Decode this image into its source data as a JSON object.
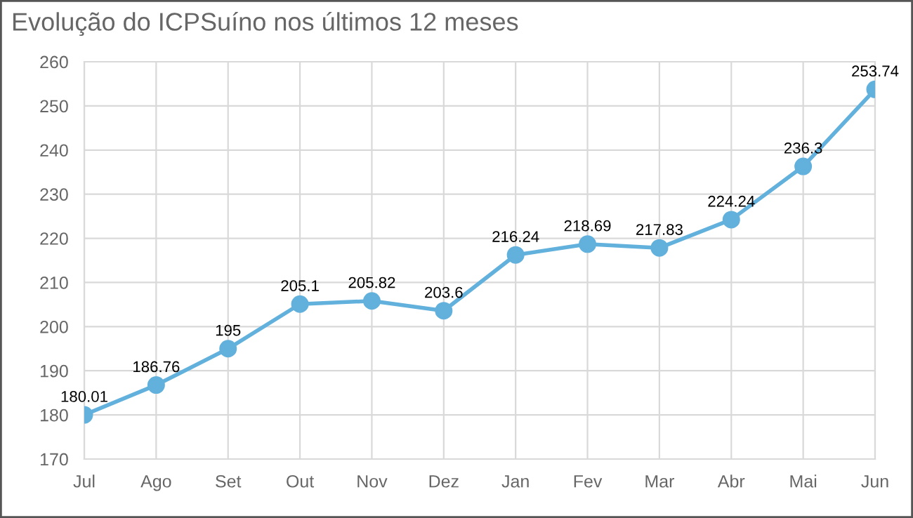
{
  "chart_data": {
    "type": "line",
    "title": "Evolução do ICPSuíno nos últimos 12 meses",
    "categories": [
      "Jul",
      "Ago",
      "Set",
      "Out",
      "Nov",
      "Dez",
      "Jan",
      "Fev",
      "Mar",
      "Abr",
      "Mai",
      "Jun"
    ],
    "series": [
      {
        "color": "#62b0dc",
        "values": [
          180.01,
          186.76,
          195,
          205.1,
          205.82,
          203.6,
          216.24,
          218.69,
          217.83,
          224.24,
          236.3,
          253.74
        ]
      }
    ],
    "ylim": [
      170,
      260
    ],
    "yticks": [
      170,
      180,
      190,
      200,
      210,
      220,
      230,
      240,
      250,
      260
    ],
    "grid": true,
    "marker": "circle",
    "line_style": "solid",
    "data_labels": true,
    "legend": false
  }
}
